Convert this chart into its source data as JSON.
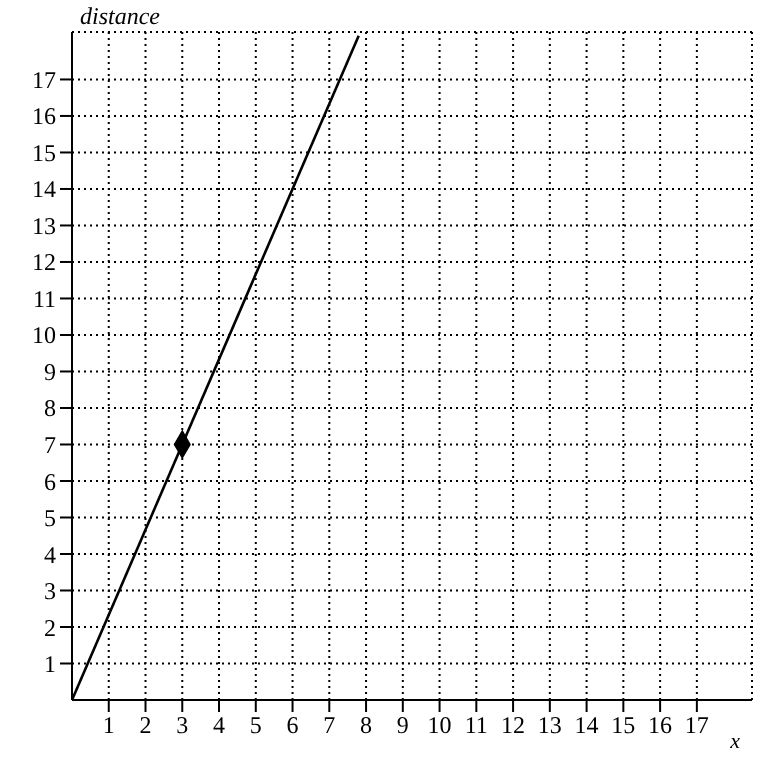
{
  "chart_data": {
    "type": "line",
    "xlabel": "x",
    "ylabel": "distance",
    "xlim": [
      0,
      18.5
    ],
    "ylim": [
      0,
      18.3
    ],
    "xticks": [
      1,
      2,
      3,
      4,
      5,
      6,
      7,
      8,
      9,
      10,
      11,
      12,
      13,
      14,
      15,
      16,
      17
    ],
    "yticks": [
      1,
      2,
      3,
      4,
      5,
      6,
      7,
      8,
      9,
      10,
      11,
      12,
      13,
      14,
      15,
      16,
      17
    ],
    "grid": true,
    "line_style": "solid",
    "marker": "none",
    "series": [
      {
        "color": "#000000",
        "x": [
          0,
          7.8
        ],
        "values": [
          0,
          18.2
        ]
      },
      {
        "type": "scatter",
        "marker": "diamond",
        "color": "#000000",
        "x": [
          3
        ],
        "values": [
          7
        ]
      }
    ]
  }
}
